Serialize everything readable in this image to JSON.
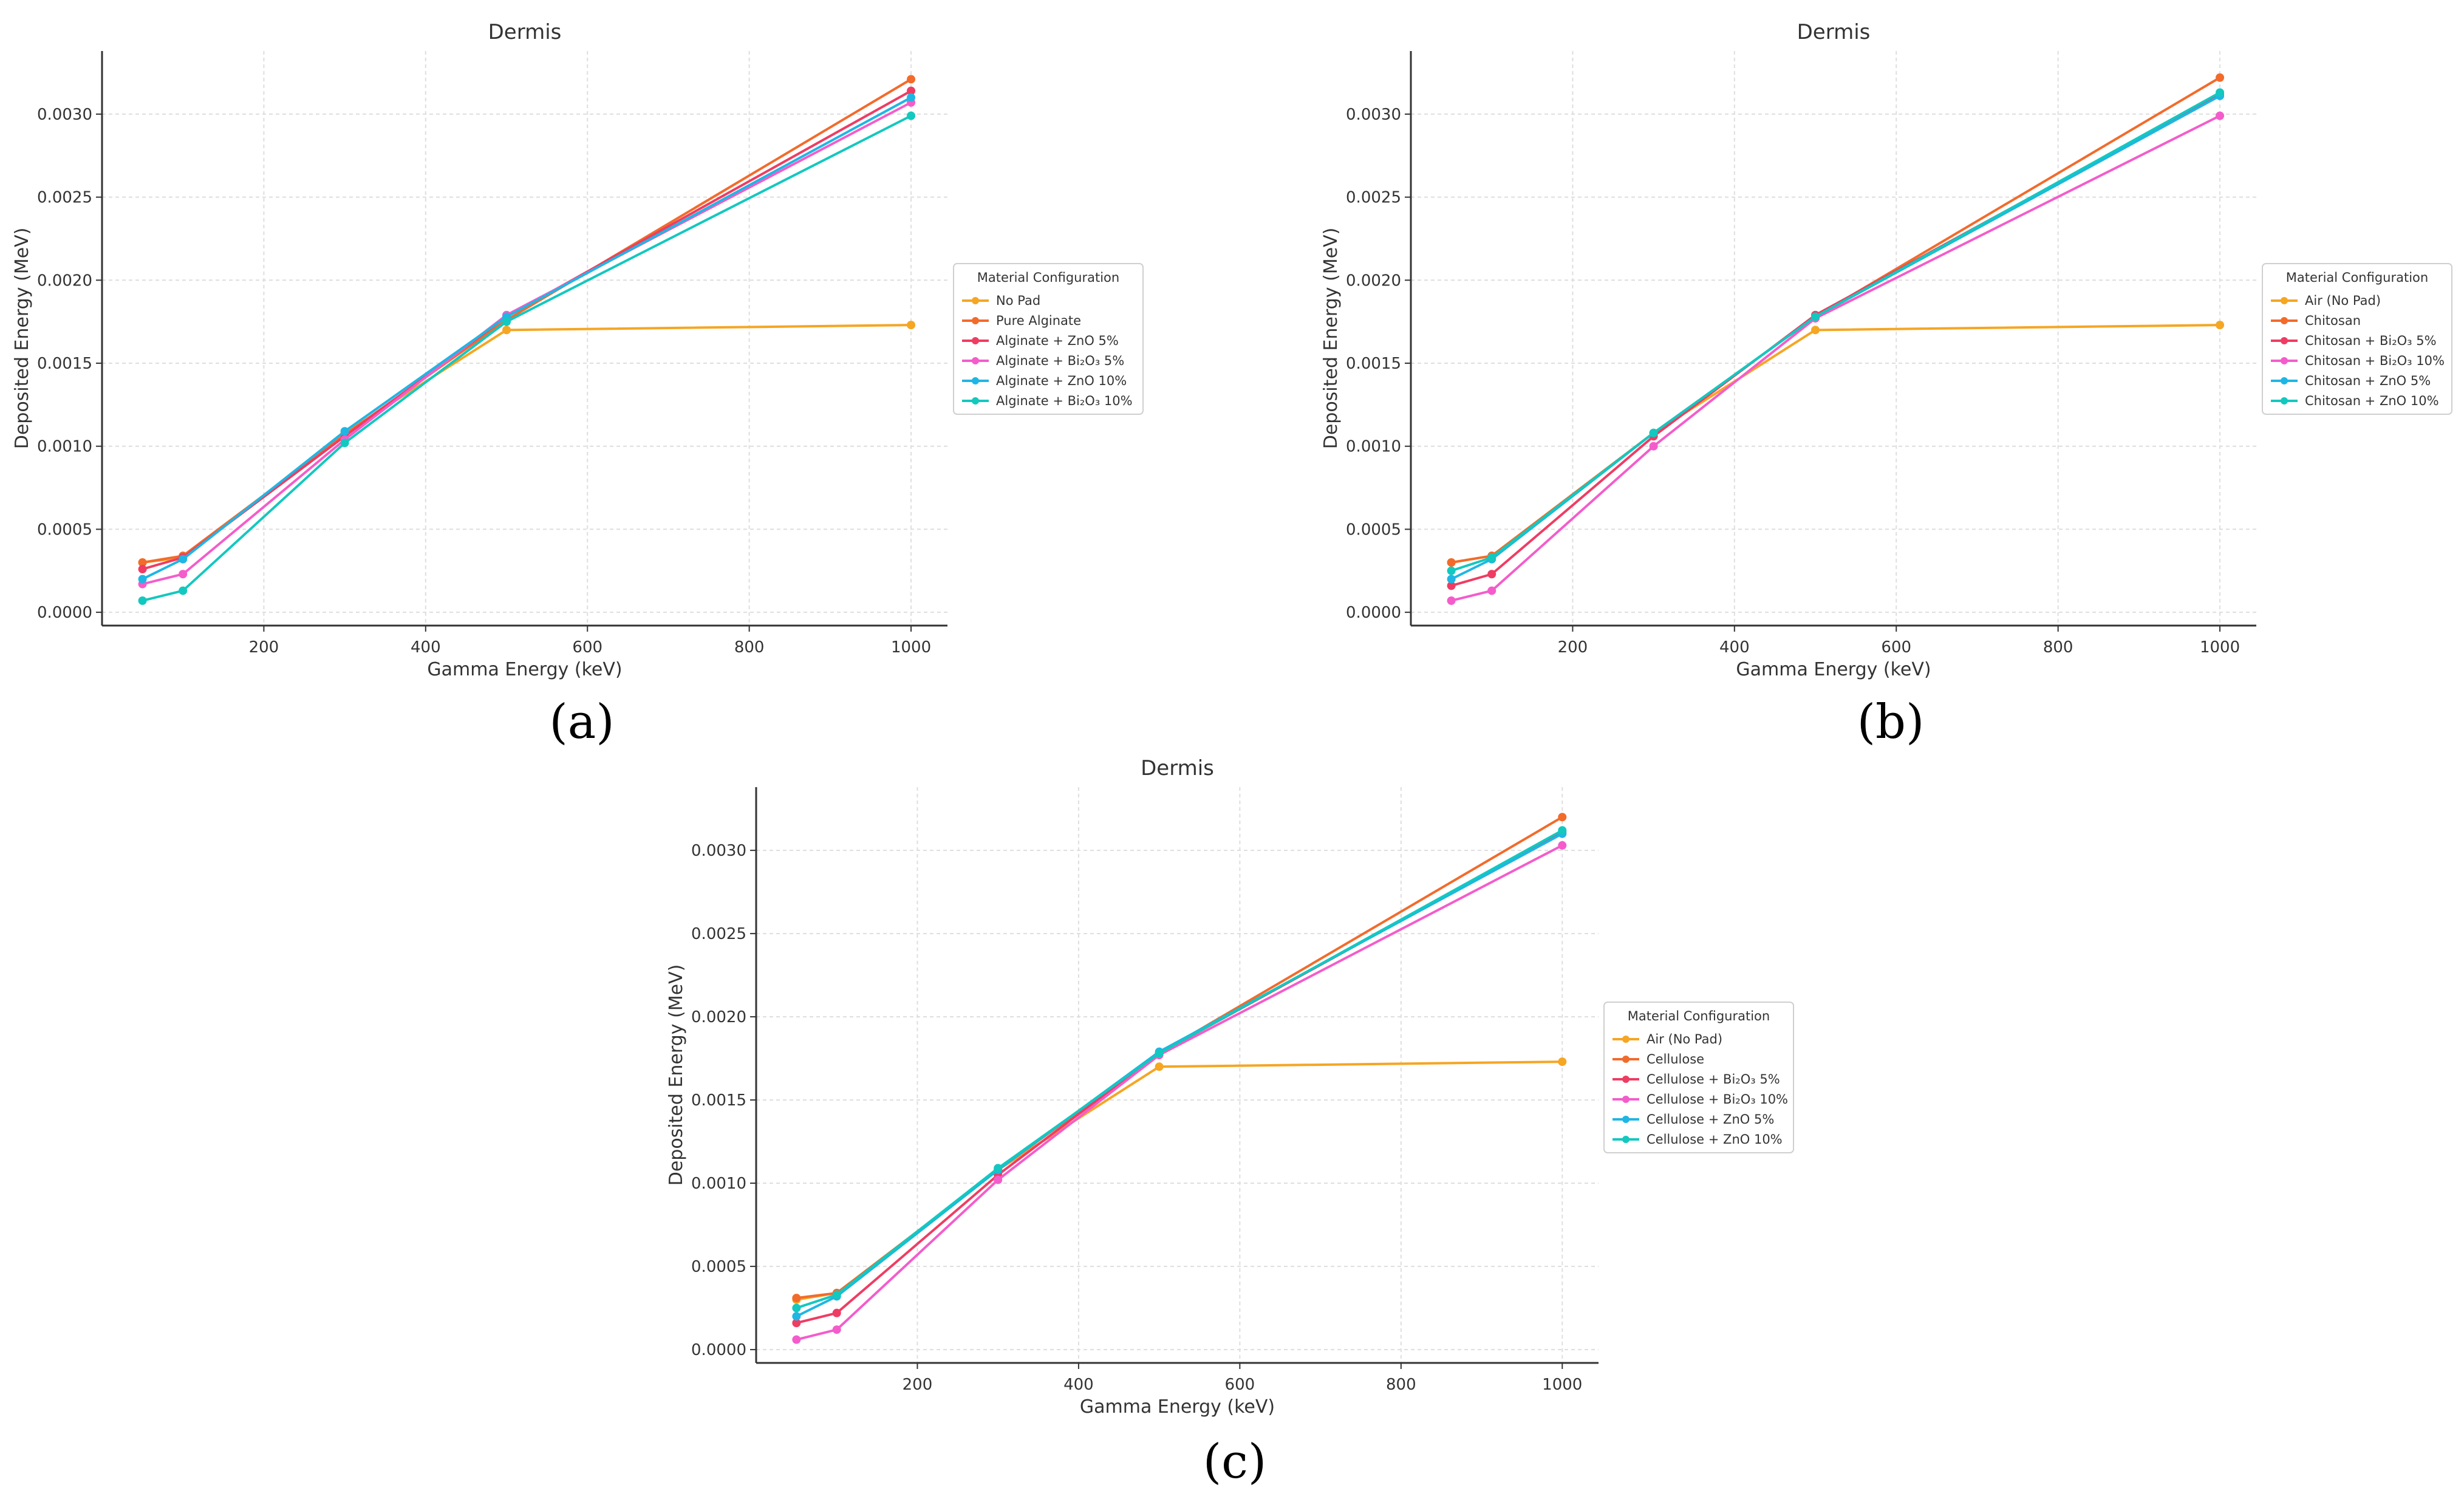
{
  "chart_data": [
    {
      "panel": "(a)",
      "type": "line",
      "title": "Dermis",
      "xlabel": "Gamma Energy (keV)",
      "ylabel": "Deposited Energy (MeV)",
      "xlim": [
        0,
        1045
      ],
      "ylim": [
        -8e-05,
        0.00338
      ],
      "xticks": [
        200,
        400,
        600,
        800,
        1000
      ],
      "xtick_labels": [
        "200",
        "400",
        "600",
        "800",
        "1000"
      ],
      "yticks": [
        0,
        0.0005,
        0.001,
        0.0015,
        0.002,
        0.0025,
        0.003
      ],
      "ytick_labels": [
        "0.0000",
        "0.0005",
        "0.0010",
        "0.0015",
        "0.0020",
        "0.0025",
        "0.0030"
      ],
      "grid": true,
      "legend_title": "Material Configuration",
      "legend_position": "right",
      "x": [
        50,
        100,
        300,
        500,
        1000
      ],
      "series": [
        {
          "name": "No Pad",
          "color": "#f5a623",
          "values": [
            0.0003,
            0.00033,
            0.00108,
            0.0017,
            0.00173
          ]
        },
        {
          "name": "Pure Alginate",
          "color": "#f26b2b",
          "values": [
            0.0003,
            0.00034,
            0.00107,
            0.00176,
            0.00321
          ]
        },
        {
          "name": "Alginate + ZnO 5%",
          "color": "#ef3c63",
          "values": [
            0.00026,
            0.00033,
            0.00106,
            0.00178,
            0.00314
          ]
        },
        {
          "name": "Alginate + Bi₂O₃ 5%",
          "color": "#f45ccb",
          "values": [
            0.00017,
            0.00023,
            0.00104,
            0.00179,
            0.00307
          ]
        },
        {
          "name": "Alginate + ZnO 10%",
          "color": "#1fb6e4",
          "values": [
            0.0002,
            0.00032,
            0.00109,
            0.00178,
            0.0031
          ]
        },
        {
          "name": "Alginate + Bi₂O₃ 10%",
          "color": "#13c8bf",
          "values": [
            7e-05,
            0.00013,
            0.00102,
            0.00175,
            0.00299
          ]
        }
      ]
    },
    {
      "panel": "(b)",
      "type": "line",
      "title": "Dermis",
      "xlabel": "Gamma Energy (keV)",
      "ylabel": "Deposited Energy (MeV)",
      "xlim": [
        0,
        1045
      ],
      "ylim": [
        -8e-05,
        0.00338
      ],
      "xticks": [
        200,
        400,
        600,
        800,
        1000
      ],
      "xtick_labels": [
        "200",
        "400",
        "600",
        "800",
        "1000"
      ],
      "yticks": [
        0,
        0.0005,
        0.001,
        0.0015,
        0.002,
        0.0025,
        0.003
      ],
      "ytick_labels": [
        "0.0000",
        "0.0005",
        "0.0010",
        "0.0015",
        "0.0020",
        "0.0025",
        "0.0030"
      ],
      "grid": true,
      "legend_title": "Material Configuration",
      "legend_position": "right",
      "x": [
        50,
        100,
        300,
        500,
        1000
      ],
      "series": [
        {
          "name": "Air (No Pad)",
          "color": "#f5a623",
          "values": [
            0.0003,
            0.00034,
            0.00108,
            0.0017,
            0.00173
          ]
        },
        {
          "name": "Chitosan",
          "color": "#f26b2b",
          "values": [
            0.0003,
            0.00034,
            0.00108,
            0.00178,
            0.00322
          ]
        },
        {
          "name": "Chitosan + Bi₂O₃ 5%",
          "color": "#ef3c63",
          "values": [
            0.00016,
            0.00023,
            0.00106,
            0.00179,
            0.00312
          ]
        },
        {
          "name": "Chitosan + Bi₂O₃ 10%",
          "color": "#f45ccb",
          "values": [
            7e-05,
            0.00013,
            0.001,
            0.00177,
            0.00299
          ]
        },
        {
          "name": "Chitosan + ZnO 5%",
          "color": "#1fb6e4",
          "values": [
            0.0002,
            0.00032,
            0.00108,
            0.00178,
            0.00311
          ]
        },
        {
          "name": "Chitosan + ZnO 10%",
          "color": "#13c8bf",
          "values": [
            0.00025,
            0.00033,
            0.00108,
            0.00178,
            0.00313
          ]
        }
      ]
    },
    {
      "panel": "(c)",
      "type": "line",
      "title": "Dermis",
      "xlabel": "Gamma Energy (keV)",
      "ylabel": "Deposited Energy (MeV)",
      "xlim": [
        0,
        1045
      ],
      "ylim": [
        -8e-05,
        0.00338
      ],
      "xticks": [
        200,
        400,
        600,
        800,
        1000
      ],
      "xtick_labels": [
        "200",
        "400",
        "600",
        "800",
        "1000"
      ],
      "yticks": [
        0,
        0.0005,
        0.001,
        0.0015,
        0.002,
        0.0025,
        0.003
      ],
      "ytick_labels": [
        "0.0000",
        "0.0005",
        "0.0010",
        "0.0015",
        "0.0020",
        "0.0025",
        "0.0030"
      ],
      "grid": true,
      "legend_title": "Material Configuration",
      "legend_position": "right",
      "x": [
        50,
        100,
        300,
        500,
        1000
      ],
      "series": [
        {
          "name": "Air (No Pad)",
          "color": "#f5a623",
          "values": [
            0.0003,
            0.00034,
            0.00108,
            0.0017,
            0.00173
          ]
        },
        {
          "name": "Cellulose",
          "color": "#f26b2b",
          "values": [
            0.00031,
            0.00034,
            0.00108,
            0.00178,
            0.0032
          ]
        },
        {
          "name": "Cellulose + Bi₂O₃ 5%",
          "color": "#ef3c63",
          "values": [
            0.00016,
            0.00022,
            0.00105,
            0.00178,
            0.00311
          ]
        },
        {
          "name": "Cellulose + Bi₂O₃ 10%",
          "color": "#f45ccb",
          "values": [
            6e-05,
            0.00012,
            0.00102,
            0.00177,
            0.00303
          ]
        },
        {
          "name": "Cellulose + ZnO 5%",
          "color": "#1fb6e4",
          "values": [
            0.0002,
            0.00032,
            0.00108,
            0.00179,
            0.0031
          ]
        },
        {
          "name": "Cellulose + ZnO 10%",
          "color": "#13c8bf",
          "values": [
            0.00025,
            0.00033,
            0.00109,
            0.00178,
            0.00312
          ]
        }
      ]
    }
  ]
}
